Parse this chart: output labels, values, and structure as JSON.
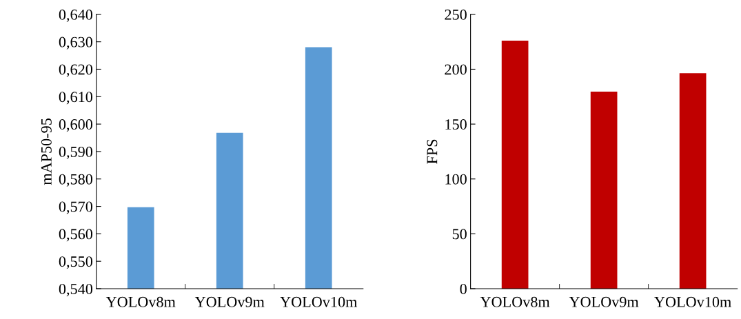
{
  "chart_data": [
    {
      "type": "bar",
      "ylabel": "mAP50-95",
      "categories": [
        "YOLOv8m",
        "YOLOv9m",
        "YOLOv10m"
      ],
      "values": [
        0.5697,
        0.5968,
        0.628
      ],
      "color": "#5b9bd5",
      "ylim": [
        0.54,
        0.64
      ],
      "yticks": [
        {
          "value": 0.54,
          "label": "0,540"
        },
        {
          "value": 0.55,
          "label": "0,550"
        },
        {
          "value": 0.56,
          "label": "0,560"
        },
        {
          "value": 0.57,
          "label": "0,570"
        },
        {
          "value": 0.58,
          "label": "0,580"
        },
        {
          "value": 0.59,
          "label": "0,590"
        },
        {
          "value": 0.6,
          "label": "0,600"
        },
        {
          "value": 0.61,
          "label": "0,610"
        },
        {
          "value": 0.62,
          "label": "0,620"
        },
        {
          "value": 0.63,
          "label": "0,630"
        },
        {
          "value": 0.64,
          "label": "0,640"
        }
      ],
      "grid": false,
      "legend": false
    },
    {
      "type": "bar",
      "ylabel": "FPS",
      "categories": [
        "YOLOv8m",
        "YOLOv9m",
        "YOLOv10m"
      ],
      "values": [
        226,
        179.5,
        196.3
      ],
      "color": "#c00000",
      "ylim": [
        0,
        250
      ],
      "yticks": [
        0,
        50,
        100,
        150,
        200,
        250
      ],
      "grid": false,
      "legend": false
    }
  ]
}
